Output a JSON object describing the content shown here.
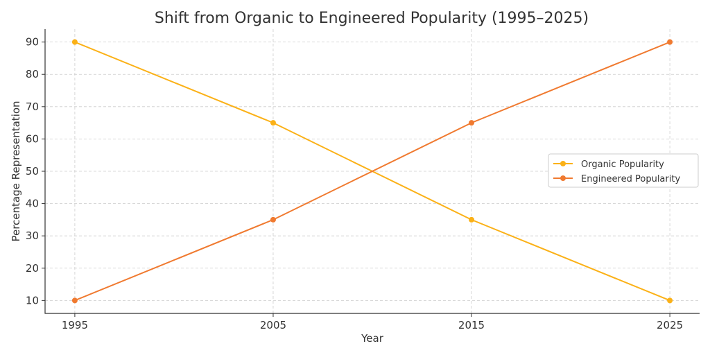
{
  "chart_data": {
    "type": "line",
    "title": "Shift from Organic to Engineered Popularity (1995–2025)",
    "xlabel": "Year",
    "ylabel": "Percentage Representation",
    "x": [
      1995,
      2005,
      2015,
      2025
    ],
    "x_ticks": [
      "1995",
      "2005",
      "2015",
      "2025"
    ],
    "y_ticks": [
      "10",
      "20",
      "30",
      "40",
      "50",
      "60",
      "70",
      "80",
      "90"
    ],
    "xlim": [
      1993.5,
      2026.5
    ],
    "ylim": [
      6,
      94
    ],
    "grid": true,
    "legend_position": "center-right",
    "series": [
      {
        "name": "Organic Popularity",
        "values": [
          90,
          65,
          35,
          10
        ],
        "color": "#fbb117"
      },
      {
        "name": "Engineered Popularity",
        "values": [
          10,
          35,
          65,
          90
        ],
        "color": "#f07a30"
      }
    ]
  }
}
